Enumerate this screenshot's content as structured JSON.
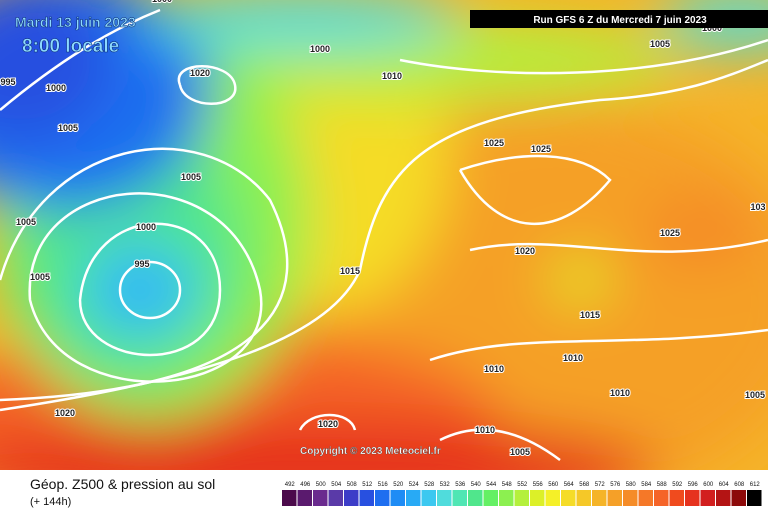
{
  "header": {
    "date": "Mardi 13 juin 2023",
    "time": "8:00 locale",
    "run": "Run GFS 6 Z du Mercredi 7 juin 2023"
  },
  "isobar_labels": [
    1000,
    1000,
    1020,
    995,
    1000,
    1010,
    1005,
    1005,
    1025,
    1025,
    1005,
    1000,
    1005,
    995,
    1015,
    1020,
    1025,
    103,
    1005,
    1015,
    1010,
    1010,
    1010,
    1005,
    1020,
    1020,
    1010,
    1005,
    1000
  ],
  "copyright": "Copyright © 2023 Meteociel.fr",
  "legend": {
    "title": "Géop. Z500 & pression au sol",
    "lead": "(+ 144h)",
    "scale": [
      492,
      496,
      500,
      504,
      508,
      512,
      516,
      520,
      524,
      528,
      532,
      536,
      540,
      544,
      548,
      552,
      556,
      560,
      564,
      568,
      572,
      576,
      580,
      584,
      588,
      592,
      596,
      600,
      604,
      608,
      612
    ],
    "colors": [
      "#4b0a4b",
      "#5a1a6e",
      "#6a2a8e",
      "#5a3aa8",
      "#3c3cc8",
      "#2850e0",
      "#1e6ef0",
      "#1e8cf5",
      "#28aaf5",
      "#3cc8f0",
      "#50dcdc",
      "#50e6b4",
      "#50e68c",
      "#64f064",
      "#8cf050",
      "#b4f03c",
      "#dcf028",
      "#f5f028",
      "#f5dc28",
      "#f5c828",
      "#f5b428",
      "#f5a028",
      "#f58c28",
      "#f57828",
      "#f56428",
      "#f04b1e",
      "#e6321e",
      "#d21e1e",
      "#b41414",
      "#8c0a0a",
      "#000000"
    ]
  }
}
